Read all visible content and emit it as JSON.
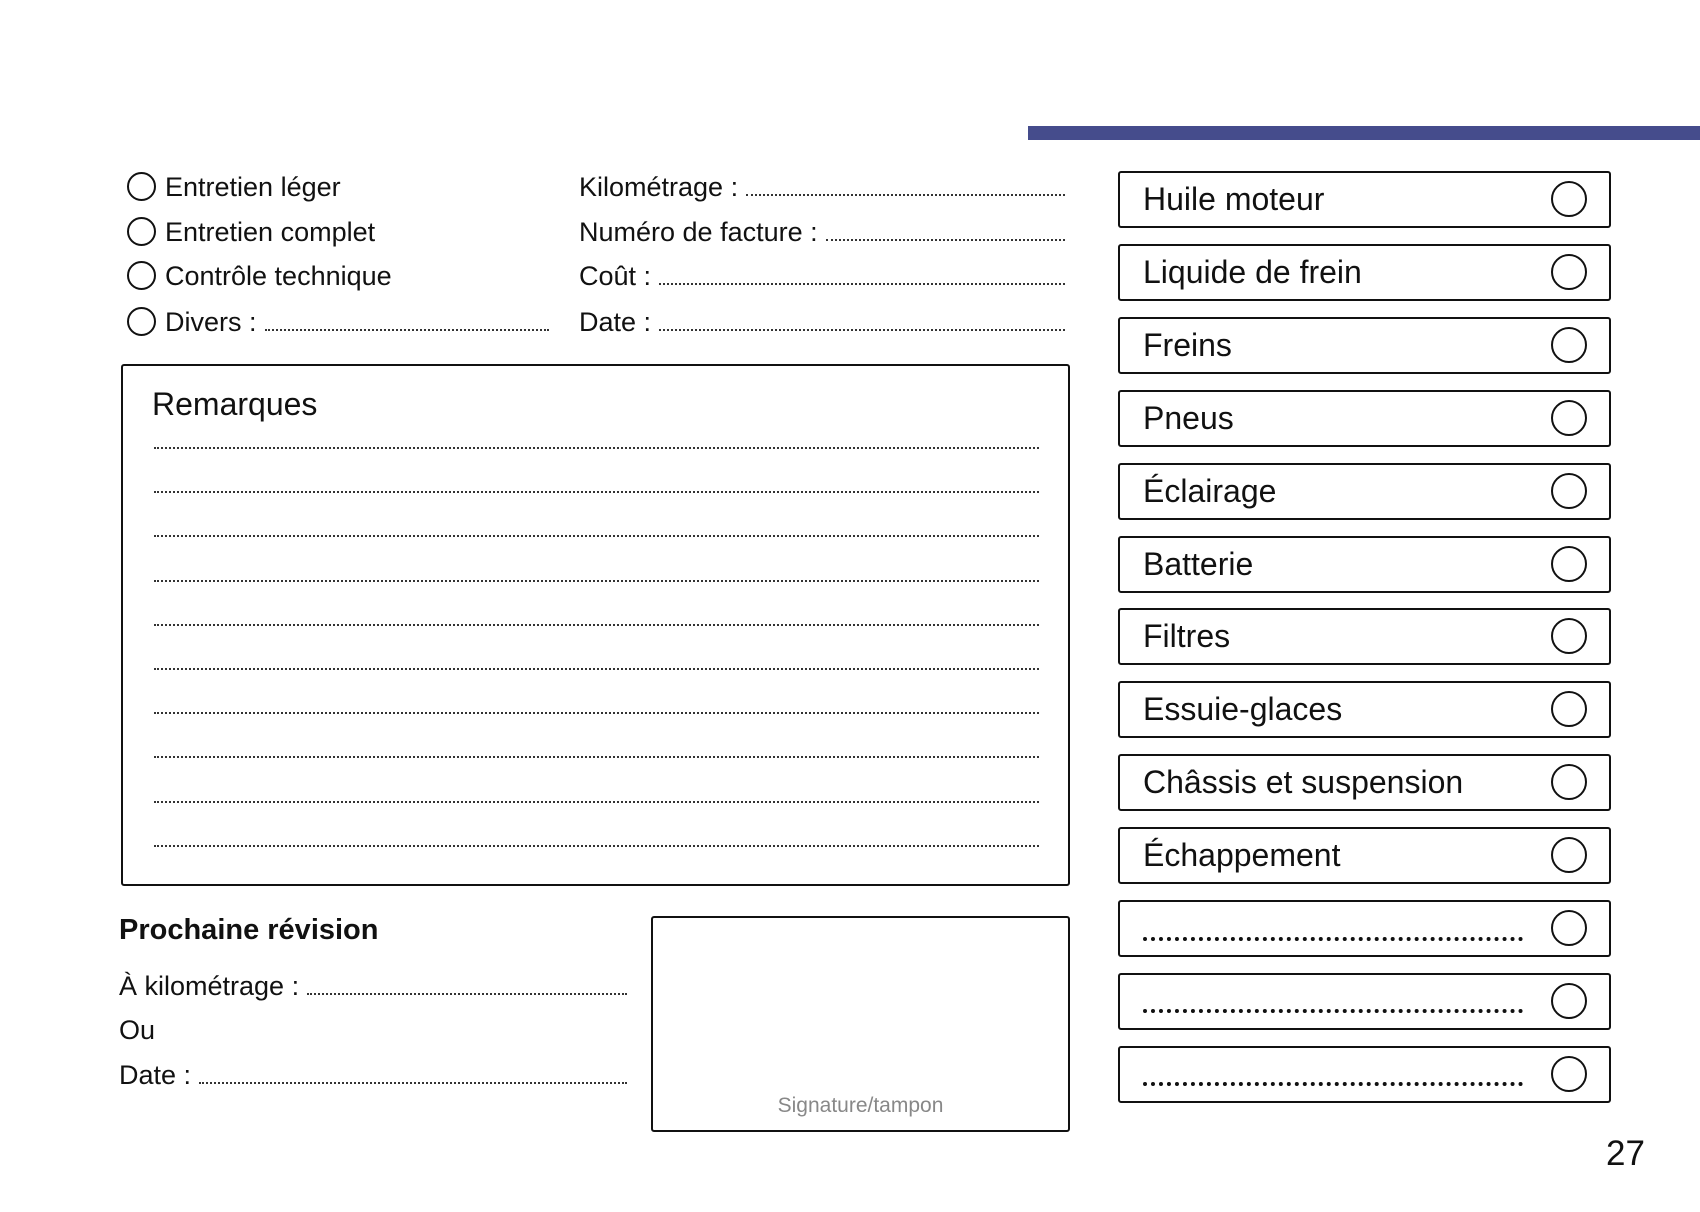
{
  "accent_color": "#454c8c",
  "service_types": [
    {
      "label": "Entretien léger"
    },
    {
      "label": "Entretien complet"
    },
    {
      "label": "Contrôle technique"
    },
    {
      "label": "Divers :"
    }
  ],
  "fields": [
    {
      "label": "Kilométrage :"
    },
    {
      "label": "Numéro de facture :"
    },
    {
      "label": "Coût :"
    },
    {
      "label": "Date :"
    }
  ],
  "remarks": {
    "title": "Remarques"
  },
  "next_service": {
    "title": "Prochaine révision",
    "mileage_label": "À kilométrage :",
    "or_label": "Ou",
    "date_label": "Date :"
  },
  "signature": {
    "label": "Signature/tampon"
  },
  "checklist": [
    {
      "label": "Huile moteur"
    },
    {
      "label": "Liquide de frein"
    },
    {
      "label": "Freins"
    },
    {
      "label": "Pneus"
    },
    {
      "label": "Éclairage"
    },
    {
      "label": "Batterie"
    },
    {
      "label": "Filtres"
    },
    {
      "label": "Essuie-glaces"
    },
    {
      "label": "Châssis et suspension"
    },
    {
      "label": "Échappement"
    },
    {
      "label": ""
    },
    {
      "label": ""
    },
    {
      "label": ""
    }
  ],
  "page_number": "27"
}
